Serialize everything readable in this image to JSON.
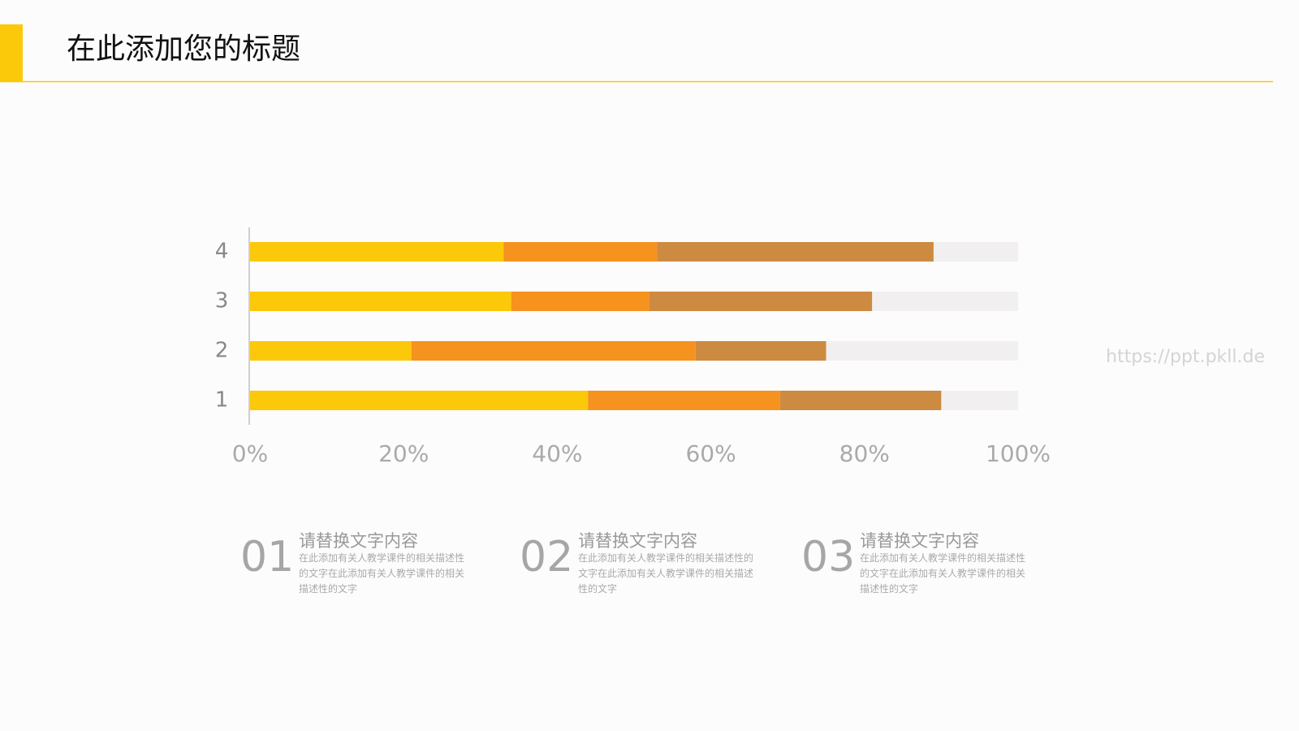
{
  "header": {
    "title": "在此添加您的标题"
  },
  "chart_data": {
    "type": "stacked_barh",
    "categories": [
      "1",
      "2",
      "3",
      "4"
    ],
    "series": [
      {
        "color": "#fcc80a",
        "values": [
          44,
          21,
          34,
          33
        ]
      },
      {
        "color": "#f6921e",
        "values": [
          25,
          37,
          18,
          20
        ]
      },
      {
        "color": "#cc8b40",
        "values": [
          21,
          17,
          29,
          36
        ]
      },
      {
        "color": "#f2eff0",
        "values": [
          10,
          25,
          19,
          11
        ]
      }
    ],
    "xlim": [
      0,
      100
    ],
    "xticks": [
      {
        "value": 0,
        "label": "0%"
      },
      {
        "value": 20,
        "label": "20%"
      },
      {
        "value": 40,
        "label": "40%"
      },
      {
        "value": 60,
        "label": "60%"
      },
      {
        "value": 80,
        "label": "80%"
      },
      {
        "value": 100,
        "label": "100%"
      }
    ]
  },
  "watermark": "https://ppt.pkll.de",
  "items": [
    {
      "number": "01",
      "heading": "请替换文字内容",
      "body": "在此添加有关人教学课件的相关描述性的文字在此添加有关人教学课件的相关描述性的文字"
    },
    {
      "number": "02",
      "heading": "请替换文字内容",
      "body": "在此添加有关人教学课件的相关描述性的文字在此添加有关人教学课件的相关描述性的文字"
    },
    {
      "number": "03",
      "heading": "请替换文字内容",
      "body": "在此添加有关人教学课件的相关描述性的文字在此添加有关人教学课件的相关描述性的文字"
    }
  ]
}
